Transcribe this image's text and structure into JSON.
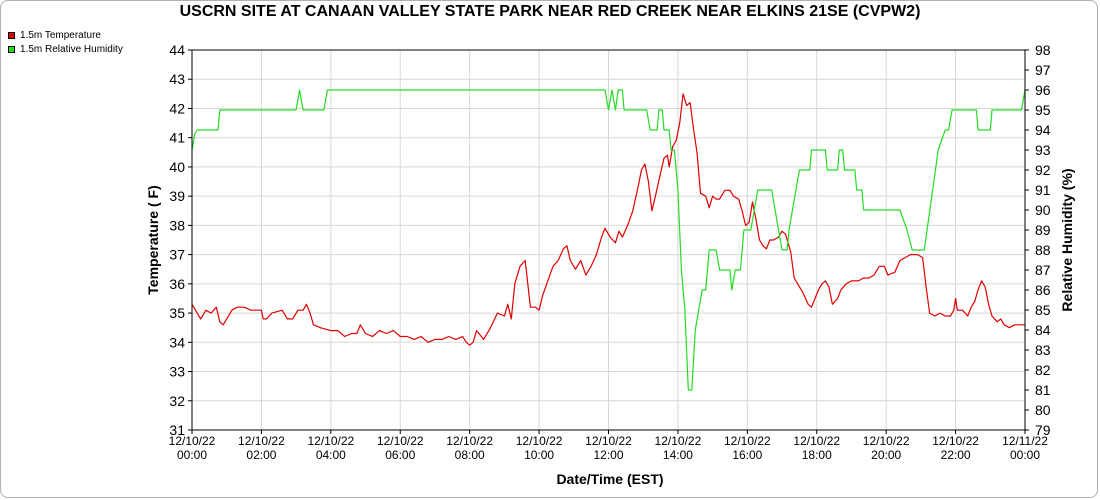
{
  "chart_data": {
    "type": "line",
    "title": "USCRN SITE AT CANAAN VALLEY STATE PARK NEAR RED CREEK NEAR ELKINS 21SE (CVPW2)",
    "xlabel": "Date/Time (EST)",
    "ylabel_left": "Temperature ( F)",
    "ylabel_right": "Relative Humidity (%)",
    "xlim_hours": [
      0,
      24
    ],
    "ylim_left": [
      31,
      44
    ],
    "ylim_right": [
      79,
      98
    ],
    "x_ticks": [
      {
        "date": "12/10/22",
        "time": "00:00"
      },
      {
        "date": "12/10/22",
        "time": "02:00"
      },
      {
        "date": "12/10/22",
        "time": "04:00"
      },
      {
        "date": "12/10/22",
        "time": "06:00"
      },
      {
        "date": "12/10/22",
        "time": "08:00"
      },
      {
        "date": "12/10/22",
        "time": "10:00"
      },
      {
        "date": "12/10/22",
        "time": "12:00"
      },
      {
        "date": "12/10/22",
        "time": "14:00"
      },
      {
        "date": "12/10/22",
        "time": "16:00"
      },
      {
        "date": "12/10/22",
        "time": "18:00"
      },
      {
        "date": "12/10/22",
        "time": "20:00"
      },
      {
        "date": "12/10/22",
        "time": "22:00"
      },
      {
        "date": "12/11/22",
        "time": "00:00"
      }
    ],
    "y_ticks_left": [
      31,
      32,
      33,
      34,
      35,
      36,
      37,
      38,
      39,
      40,
      41,
      42,
      43,
      44
    ],
    "y_ticks_right": [
      79,
      80,
      81,
      82,
      83,
      84,
      85,
      86,
      87,
      88,
      89,
      90,
      91,
      92,
      93,
      94,
      95,
      96,
      97,
      98
    ],
    "grid": true,
    "legend_position": "top-left",
    "series": [
      {
        "name": "1.5m Temperature",
        "axis": "left",
        "color": "#e00000",
        "points": [
          [
            0.0,
            35.3
          ],
          [
            0.15,
            35.0
          ],
          [
            0.25,
            34.8
          ],
          [
            0.4,
            35.1
          ],
          [
            0.55,
            35.0
          ],
          [
            0.7,
            35.2
          ],
          [
            0.8,
            34.7
          ],
          [
            0.9,
            34.6
          ],
          [
            1.0,
            34.8
          ],
          [
            1.15,
            35.1
          ],
          [
            1.3,
            35.2
          ],
          [
            1.5,
            35.2
          ],
          [
            1.7,
            35.1
          ],
          [
            1.9,
            35.1
          ],
          [
            2.0,
            35.1
          ],
          [
            2.05,
            34.8
          ],
          [
            2.15,
            34.8
          ],
          [
            2.3,
            35.0
          ],
          [
            2.6,
            35.1
          ],
          [
            2.75,
            34.8
          ],
          [
            2.9,
            34.8
          ],
          [
            3.05,
            35.1
          ],
          [
            3.2,
            35.1
          ],
          [
            3.3,
            35.3
          ],
          [
            3.4,
            35.0
          ],
          [
            3.5,
            34.6
          ],
          [
            3.7,
            34.5
          ],
          [
            4.0,
            34.4
          ],
          [
            4.2,
            34.4
          ],
          [
            4.4,
            34.2
          ],
          [
            4.6,
            34.3
          ],
          [
            4.75,
            34.3
          ],
          [
            4.85,
            34.6
          ],
          [
            5.0,
            34.3
          ],
          [
            5.2,
            34.2
          ],
          [
            5.4,
            34.4
          ],
          [
            5.6,
            34.3
          ],
          [
            5.8,
            34.4
          ],
          [
            6.0,
            34.2
          ],
          [
            6.2,
            34.2
          ],
          [
            6.4,
            34.1
          ],
          [
            6.6,
            34.2
          ],
          [
            6.8,
            34.0
          ],
          [
            7.0,
            34.1
          ],
          [
            7.2,
            34.1
          ],
          [
            7.4,
            34.2
          ],
          [
            7.6,
            34.1
          ],
          [
            7.8,
            34.2
          ],
          [
            7.9,
            34.0
          ],
          [
            8.0,
            33.9
          ],
          [
            8.1,
            34.0
          ],
          [
            8.2,
            34.4
          ],
          [
            8.4,
            34.1
          ],
          [
            8.6,
            34.5
          ],
          [
            8.8,
            35.0
          ],
          [
            9.0,
            34.9
          ],
          [
            9.1,
            35.3
          ],
          [
            9.2,
            34.8
          ],
          [
            9.3,
            36.0
          ],
          [
            9.45,
            36.6
          ],
          [
            9.6,
            36.8
          ],
          [
            9.75,
            35.2
          ],
          [
            9.9,
            35.2
          ],
          [
            10.0,
            35.1
          ],
          [
            10.1,
            35.6
          ],
          [
            10.25,
            36.1
          ],
          [
            10.4,
            36.6
          ],
          [
            10.55,
            36.8
          ],
          [
            10.7,
            37.2
          ],
          [
            10.8,
            37.3
          ],
          [
            10.9,
            36.8
          ],
          [
            11.05,
            36.5
          ],
          [
            11.2,
            36.8
          ],
          [
            11.35,
            36.3
          ],
          [
            11.5,
            36.6
          ],
          [
            11.65,
            37.0
          ],
          [
            11.8,
            37.6
          ],
          [
            11.9,
            37.9
          ],
          [
            12.05,
            37.6
          ],
          [
            12.2,
            37.4
          ],
          [
            12.3,
            37.8
          ],
          [
            12.4,
            37.6
          ],
          [
            12.55,
            38.0
          ],
          [
            12.7,
            38.5
          ],
          [
            12.85,
            39.3
          ],
          [
            12.95,
            39.9
          ],
          [
            13.05,
            40.1
          ],
          [
            13.15,
            39.5
          ],
          [
            13.25,
            38.5
          ],
          [
            13.35,
            39.0
          ],
          [
            13.5,
            39.8
          ],
          [
            13.6,
            40.3
          ],
          [
            13.7,
            40.4
          ],
          [
            13.75,
            40.0
          ],
          [
            13.85,
            40.7
          ],
          [
            13.95,
            40.9
          ],
          [
            14.05,
            41.5
          ],
          [
            14.15,
            42.5
          ],
          [
            14.25,
            42.1
          ],
          [
            14.35,
            42.2
          ],
          [
            14.45,
            41.3
          ],
          [
            14.55,
            40.5
          ],
          [
            14.65,
            39.1
          ],
          [
            14.8,
            39.0
          ],
          [
            14.9,
            38.6
          ],
          [
            15.0,
            39.0
          ],
          [
            15.1,
            38.9
          ],
          [
            15.2,
            38.9
          ],
          [
            15.35,
            39.2
          ],
          [
            15.5,
            39.2
          ],
          [
            15.6,
            39.0
          ],
          [
            15.75,
            38.9
          ],
          [
            15.85,
            38.5
          ],
          [
            15.95,
            38.0
          ],
          [
            16.05,
            38.1
          ],
          [
            16.15,
            38.8
          ],
          [
            16.25,
            38.2
          ],
          [
            16.35,
            37.5
          ],
          [
            16.45,
            37.3
          ],
          [
            16.55,
            37.2
          ],
          [
            16.65,
            37.5
          ],
          [
            16.75,
            37.5
          ],
          [
            16.9,
            37.6
          ],
          [
            17.0,
            37.8
          ],
          [
            17.1,
            37.7
          ],
          [
            17.25,
            37.1
          ],
          [
            17.35,
            36.2
          ],
          [
            17.5,
            35.9
          ],
          [
            17.6,
            35.7
          ],
          [
            17.75,
            35.3
          ],
          [
            17.85,
            35.2
          ],
          [
            17.95,
            35.5
          ],
          [
            18.05,
            35.8
          ],
          [
            18.15,
            36.0
          ],
          [
            18.25,
            36.1
          ],
          [
            18.35,
            35.9
          ],
          [
            18.45,
            35.3
          ],
          [
            18.6,
            35.5
          ],
          [
            18.7,
            35.8
          ],
          [
            18.85,
            36.0
          ],
          [
            19.0,
            36.1
          ],
          [
            19.2,
            36.1
          ],
          [
            19.35,
            36.2
          ],
          [
            19.5,
            36.2
          ],
          [
            19.65,
            36.3
          ],
          [
            19.8,
            36.6
          ],
          [
            19.95,
            36.6
          ],
          [
            20.05,
            36.3
          ],
          [
            20.25,
            36.4
          ],
          [
            20.4,
            36.8
          ],
          [
            20.55,
            36.9
          ],
          [
            20.7,
            37.0
          ],
          [
            20.9,
            37.0
          ],
          [
            21.05,
            36.9
          ],
          [
            21.15,
            35.9
          ],
          [
            21.25,
            35.0
          ],
          [
            21.4,
            34.9
          ],
          [
            21.55,
            35.0
          ],
          [
            21.7,
            34.9
          ],
          [
            21.85,
            34.9
          ],
          [
            21.95,
            35.1
          ],
          [
            22.0,
            35.5
          ],
          [
            22.05,
            35.1
          ],
          [
            22.2,
            35.1
          ],
          [
            22.35,
            34.9
          ],
          [
            22.45,
            35.2
          ],
          [
            22.55,
            35.4
          ],
          [
            22.65,
            35.8
          ],
          [
            22.75,
            36.1
          ],
          [
            22.85,
            35.9
          ],
          [
            22.95,
            35.3
          ],
          [
            23.05,
            34.9
          ],
          [
            23.2,
            34.7
          ],
          [
            23.3,
            34.8
          ],
          [
            23.4,
            34.6
          ],
          [
            23.55,
            34.5
          ],
          [
            23.7,
            34.6
          ],
          [
            23.85,
            34.6
          ],
          [
            24.0,
            34.6
          ]
        ]
      },
      {
        "name": "1.5m Relative Humidity",
        "axis": "right",
        "color": "#22dd22",
        "points": [
          [
            0.0,
            93.0
          ],
          [
            0.08,
            93.8
          ],
          [
            0.15,
            94.0
          ],
          [
            0.3,
            94.0
          ],
          [
            0.55,
            94.0
          ],
          [
            0.75,
            94.0
          ],
          [
            0.8,
            95.0
          ],
          [
            1.0,
            95.0
          ],
          [
            1.5,
            95.0
          ],
          [
            2.0,
            95.0
          ],
          [
            2.5,
            95.0
          ],
          [
            3.0,
            95.0
          ],
          [
            3.1,
            96.0
          ],
          [
            3.2,
            95.0
          ],
          [
            3.6,
            95.0
          ],
          [
            3.8,
            95.0
          ],
          [
            3.9,
            96.0
          ],
          [
            4.5,
            96.0
          ],
          [
            5.5,
            96.0
          ],
          [
            6.5,
            96.0
          ],
          [
            7.5,
            96.0
          ],
          [
            8.5,
            96.0
          ],
          [
            9.5,
            96.0
          ],
          [
            10.5,
            96.0
          ],
          [
            11.5,
            96.0
          ],
          [
            11.9,
            96.0
          ],
          [
            12.0,
            95.0
          ],
          [
            12.1,
            96.0
          ],
          [
            12.2,
            95.0
          ],
          [
            12.28,
            96.0
          ],
          [
            12.4,
            96.0
          ],
          [
            12.45,
            95.0
          ],
          [
            12.7,
            95.0
          ],
          [
            13.1,
            95.0
          ],
          [
            13.2,
            94.0
          ],
          [
            13.4,
            94.0
          ],
          [
            13.45,
            95.0
          ],
          [
            13.55,
            95.0
          ],
          [
            13.6,
            94.0
          ],
          [
            13.75,
            94.0
          ],
          [
            13.8,
            93.0
          ],
          [
            13.9,
            93.0
          ],
          [
            14.0,
            91.0
          ],
          [
            14.1,
            87.0
          ],
          [
            14.2,
            85.0
          ],
          [
            14.3,
            81.0
          ],
          [
            14.4,
            81.0
          ],
          [
            14.5,
            84.0
          ],
          [
            14.6,
            85.0
          ],
          [
            14.7,
            86.0
          ],
          [
            14.8,
            86.0
          ],
          [
            14.9,
            88.0
          ],
          [
            15.1,
            88.0
          ],
          [
            15.2,
            87.0
          ],
          [
            15.5,
            87.0
          ],
          [
            15.55,
            86.0
          ],
          [
            15.65,
            87.0
          ],
          [
            15.8,
            87.0
          ],
          [
            15.9,
            89.0
          ],
          [
            16.1,
            89.0
          ],
          [
            16.2,
            90.0
          ],
          [
            16.3,
            91.0
          ],
          [
            16.7,
            91.0
          ],
          [
            16.8,
            90.0
          ],
          [
            17.0,
            88.0
          ],
          [
            17.15,
            88.0
          ],
          [
            17.2,
            89.0
          ],
          [
            17.5,
            92.0
          ],
          [
            17.8,
            92.0
          ],
          [
            17.85,
            93.0
          ],
          [
            18.25,
            93.0
          ],
          [
            18.3,
            92.0
          ],
          [
            18.6,
            92.0
          ],
          [
            18.65,
            93.0
          ],
          [
            18.75,
            93.0
          ],
          [
            18.8,
            92.0
          ],
          [
            19.1,
            92.0
          ],
          [
            19.15,
            91.0
          ],
          [
            19.3,
            91.0
          ],
          [
            19.35,
            90.0
          ],
          [
            20.0,
            90.0
          ],
          [
            20.4,
            90.0
          ],
          [
            20.6,
            89.0
          ],
          [
            20.75,
            88.0
          ],
          [
            21.1,
            88.0
          ],
          [
            21.5,
            93.0
          ],
          [
            21.7,
            94.0
          ],
          [
            21.8,
            94.0
          ],
          [
            21.9,
            95.0
          ],
          [
            22.6,
            95.0
          ],
          [
            22.65,
            94.0
          ],
          [
            23.0,
            94.0
          ],
          [
            23.05,
            95.0
          ],
          [
            23.5,
            95.0
          ],
          [
            23.9,
            95.0
          ],
          [
            24.0,
            96.0
          ]
        ]
      }
    ]
  }
}
